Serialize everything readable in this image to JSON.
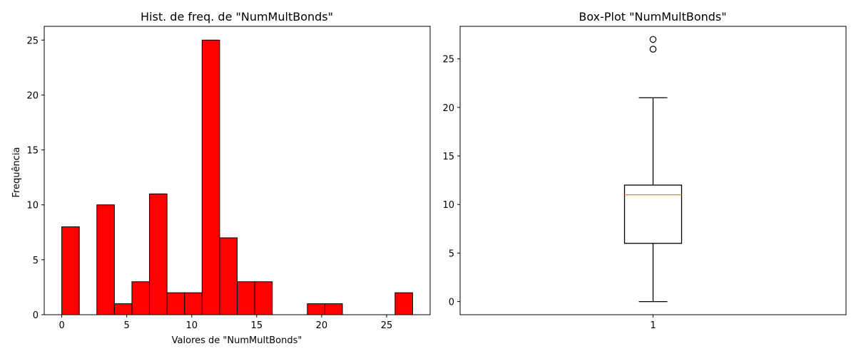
{
  "chart_data": [
    {
      "type": "bar",
      "title": "Hist. de freq. de \"NumMultBonds\"",
      "xlabel": "Valores de \"NumMultBonds\"",
      "ylabel": "Frequência",
      "bins": {
        "start": 0,
        "end": 27,
        "count": 20
      },
      "values": [
        8,
        0,
        10,
        1,
        3,
        11,
        2,
        2,
        25,
        7,
        3,
        3,
        0,
        0,
        1,
        1,
        0,
        0,
        0,
        2
      ],
      "xlim": [
        -1.35,
        28.35
      ],
      "ylim": [
        0,
        26.25
      ],
      "xticks": [
        0,
        5,
        10,
        15,
        20,
        25
      ],
      "yticks": [
        0,
        5,
        10,
        15,
        20,
        25
      ],
      "bar_color": "#ff0000",
      "edge_color": "#000000",
      "grid": false
    },
    {
      "type": "box",
      "title": "Box-Plot \"NumMultBonds\"",
      "xticks": [
        "1"
      ],
      "yticks": [
        0,
        5,
        10,
        15,
        20,
        25
      ],
      "ylim": [
        -1.35,
        28.35
      ],
      "stats": {
        "whisker_low": 0,
        "q1": 6,
        "median": 11,
        "q3": 12,
        "whisker_high": 21
      },
      "outliers": [
        26,
        27
      ],
      "median_color": "#ff7f0e",
      "grid": false
    }
  ]
}
